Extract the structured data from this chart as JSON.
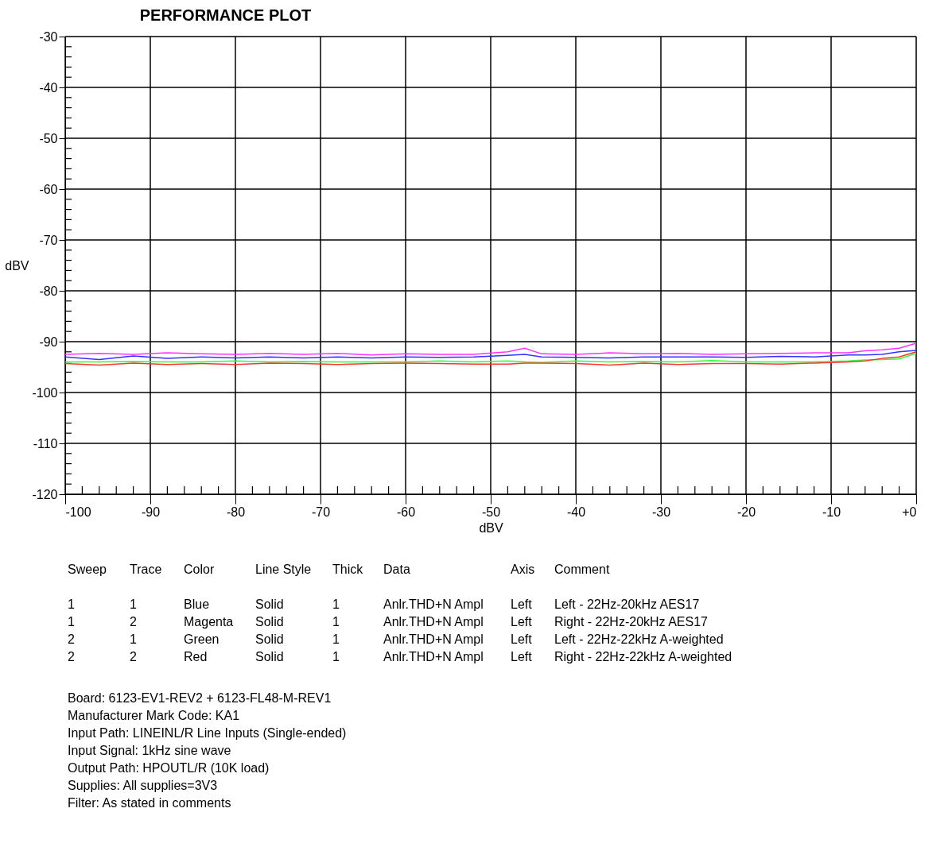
{
  "chart_data": {
    "type": "line",
    "title": "PERFORMANCE PLOT",
    "xlabel": "dBV",
    "ylabel": "dBV",
    "xlim": [
      -100,
      0
    ],
    "ylim": [
      -120,
      -30
    ],
    "xticks": [
      -100,
      {
        "value": -98,
        "label": null
      },
      {
        "value": -96,
        "label": null
      },
      {
        "value": -94,
        "label": null
      },
      {
        "value": -92,
        "label": null
      },
      -90,
      {
        "value": -88,
        "label": null
      },
      {
        "value": -86,
        "label": null
      },
      {
        "value": -84,
        "label": null
      },
      {
        "value": -82,
        "label": null
      },
      -80,
      {
        "value": -78,
        "label": null
      },
      {
        "value": -76,
        "label": null
      },
      {
        "value": -74,
        "label": null
      },
      {
        "value": -72,
        "label": null
      },
      -70,
      {
        "value": -68,
        "label": null
      },
      {
        "value": -66,
        "label": null
      },
      {
        "value": -64,
        "label": null
      },
      {
        "value": -62,
        "label": null
      },
      -60,
      {
        "value": -58,
        "label": null
      },
      {
        "value": -56,
        "label": null
      },
      {
        "value": -54,
        "label": null
      },
      {
        "value": -52,
        "label": null
      },
      -50,
      {
        "value": -48,
        "label": null
      },
      {
        "value": -46,
        "label": null
      },
      {
        "value": -44,
        "label": null
      },
      {
        "value": -42,
        "label": null
      },
      -40,
      {
        "value": -38,
        "label": null
      },
      {
        "value": -36,
        "label": null
      },
      {
        "value": -34,
        "label": null
      },
      {
        "value": -32,
        "label": null
      },
      -30,
      {
        "value": -28,
        "label": null
      },
      {
        "value": -26,
        "label": null
      },
      {
        "value": -24,
        "label": null
      },
      {
        "value": -22,
        "label": null
      },
      -20,
      {
        "value": -18,
        "label": null
      },
      {
        "value": -16,
        "label": null
      },
      {
        "value": -14,
        "label": null
      },
      {
        "value": -12,
        "label": null
      },
      -10,
      {
        "value": -8,
        "label": null
      },
      {
        "value": -6,
        "label": null
      },
      {
        "value": -4,
        "label": null
      },
      {
        "value": -2,
        "label": null
      },
      {
        "value": 0,
        "label": "+0"
      }
    ],
    "yticks": [
      -120,
      {
        "value": -118,
        "label": null
      },
      {
        "value": -116,
        "label": null
      },
      {
        "value": -114,
        "label": null
      },
      {
        "value": -112,
        "label": null
      },
      -110,
      {
        "value": -108,
        "label": null
      },
      {
        "value": -106,
        "label": null
      },
      {
        "value": -104,
        "label": null
      },
      {
        "value": -102,
        "label": null
      },
      -100,
      {
        "value": -98,
        "label": null
      },
      {
        "value": -96,
        "label": null
      },
      {
        "value": -94,
        "label": null
      },
      {
        "value": -92,
        "label": null
      },
      -90,
      {
        "value": -88,
        "label": null
      },
      {
        "value": -86,
        "label": null
      },
      {
        "value": -84,
        "label": null
      },
      {
        "value": -82,
        "label": null
      },
      -80,
      {
        "value": -78,
        "label": null
      },
      {
        "value": -76,
        "label": null
      },
      {
        "value": -74,
        "label": null
      },
      {
        "value": -72,
        "label": null
      },
      -70,
      {
        "value": -68,
        "label": null
      },
      {
        "value": -66,
        "label": null
      },
      {
        "value": -64,
        "label": null
      },
      {
        "value": -62,
        "label": null
      },
      -60,
      {
        "value": -58,
        "label": null
      },
      {
        "value": -56,
        "label": null
      },
      {
        "value": -54,
        "label": null
      },
      {
        "value": -52,
        "label": null
      },
      -50,
      {
        "value": -48,
        "label": null
      },
      {
        "value": -46,
        "label": null
      },
      {
        "value": -44,
        "label": null
      },
      {
        "value": -42,
        "label": null
      },
      -40,
      {
        "value": -38,
        "label": null
      },
      {
        "value": -36,
        "label": null
      },
      {
        "value": -34,
        "label": null
      },
      {
        "value": -32,
        "label": null
      },
      -30
    ],
    "grid": true,
    "line_style": "solid",
    "marker": "none",
    "x": [
      -100,
      -96,
      -92,
      -88,
      -84,
      -80,
      -76,
      -72,
      -68,
      -64,
      -60,
      -56,
      -52,
      -48,
      -46,
      -44,
      -40,
      -36,
      -32,
      -28,
      -24,
      -20,
      -16,
      -12,
      -8,
      -6,
      -4,
      -2,
      0
    ],
    "series": [
      {
        "color": "#3333ff",
        "values": [
          -93.0,
          -93.5,
          -92.8,
          -93.3,
          -93.0,
          -93.2,
          -93.0,
          -93.2,
          -93.0,
          -93.2,
          -93.0,
          -93.1,
          -93.0,
          -92.7,
          -92.5,
          -93.0,
          -93.1,
          -93.2,
          -93.0,
          -93.0,
          -93.0,
          -93.1,
          -92.9,
          -93.0,
          -92.6,
          -92.6,
          -92.5,
          -92.0,
          -91.7
        ]
      },
      {
        "color": "#ff33ff",
        "values": [
          -92.5,
          -92.3,
          -92.5,
          -92.2,
          -92.4,
          -92.5,
          -92.3,
          -92.5,
          -92.3,
          -92.6,
          -92.4,
          -92.5,
          -92.5,
          -92.0,
          -91.3,
          -92.4,
          -92.5,
          -92.2,
          -92.4,
          -92.3,
          -92.5,
          -92.4,
          -92.3,
          -92.2,
          -92.2,
          -91.8,
          -91.6,
          -91.3,
          -90.3
        ]
      },
      {
        "color": "#33ff33",
        "values": [
          -94.0,
          -94.0,
          -93.9,
          -94.0,
          -94.0,
          -93.8,
          -94.0,
          -93.9,
          -94.0,
          -94.0,
          -94.0,
          -93.8,
          -94.0,
          -93.8,
          -94.0,
          -94.1,
          -93.8,
          -94.0,
          -93.9,
          -94.0,
          -93.7,
          -94.0,
          -94.0,
          -94.0,
          -93.8,
          -93.6,
          -93.5,
          -93.4,
          -92.3
        ]
      },
      {
        "color": "#ff3333",
        "values": [
          -94.3,
          -94.6,
          -94.2,
          -94.5,
          -94.3,
          -94.5,
          -94.2,
          -94.3,
          -94.5,
          -94.3,
          -94.2,
          -94.3,
          -94.4,
          -94.4,
          -94.2,
          -94.2,
          -94.3,
          -94.6,
          -94.2,
          -94.5,
          -94.3,
          -94.3,
          -94.4,
          -94.2,
          -94.0,
          -93.8,
          -93.3,
          -93.0,
          -92.0
        ]
      }
    ],
    "annotations": [
      "Sweep\tTrace\tColor\tLine Style\tThick\tData\tAxis\tComment",
      "1\t1\tBlue\tSolid\t1\tAnlr.THD+N Ampl\tLeft\tLeft - 22Hz-20kHz AES17",
      "1\t2\tMagenta\tSolid\t1\tAnlr.THD+N Ampl\tLeft\tRight - 22Hz-20kHz AES17",
      "2\t1\tGreen\tSolid\t1\tAnlr.THD+N Ampl\tLeft\tLeft - 22Hz-22kHz A-weighted",
      "2\t2\tRed\tSolid\t1\tAnlr.THD+N Ampl\tLeft\tRight - 22Hz-22kHz A-weighted",
      "Board: 6123-EV1-REV2 + 6123-FL48-M-REV1",
      "Manufacturer Mark Code: KA1",
      "Input Path: LINEINL/R Line Inputs (Single-ended)",
      "Input Signal: 1kHz sine wave",
      "Output Path: HPOUTL/R (10K load)",
      "Supplies: All supplies=3V3",
      "Filter: As stated in comments"
    ]
  }
}
